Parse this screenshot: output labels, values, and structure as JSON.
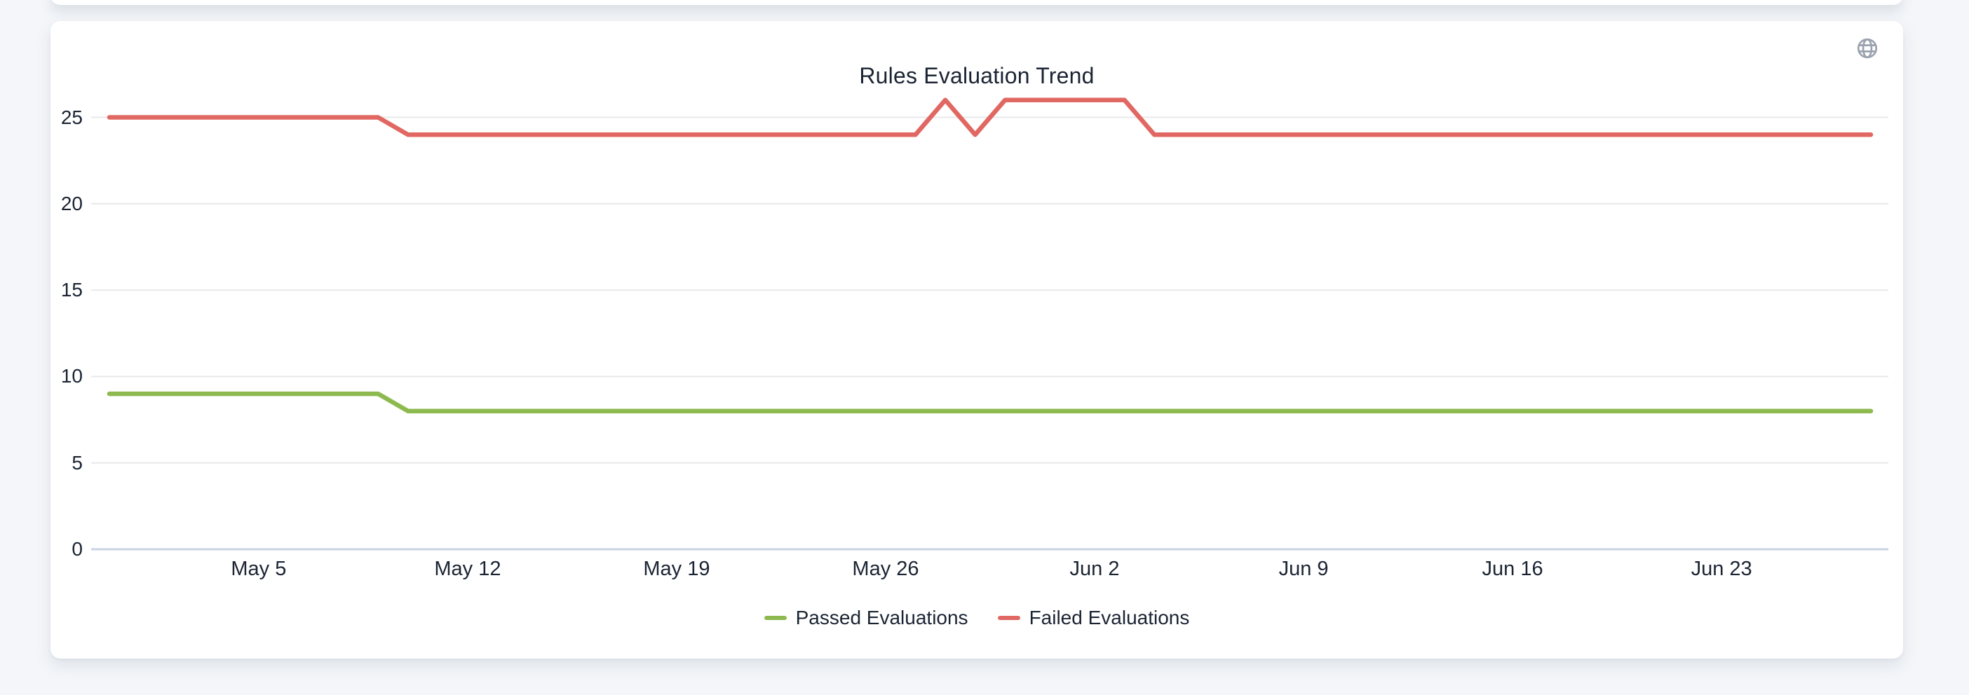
{
  "header": {
    "title": "Rules Evaluation Trend"
  },
  "icons": {
    "top_right": "globe-icon"
  },
  "colors": {
    "page_background": "#f4f6f9",
    "card_background": "#ffffff",
    "text": "#1b2433",
    "grid_line": "#e8e9eb",
    "axis_line": "#c9d3e4",
    "icon_gray": "#9aa2ad",
    "passed_green": "#8dba4f",
    "failed_red": "#e16862"
  },
  "chart_data": {
    "type": "line",
    "title": "Rules Evaluation Trend",
    "xlabel": "",
    "ylabel": "",
    "grid": true,
    "legend_position": "bottom",
    "ylim": [
      0,
      26.4
    ],
    "yticks": [
      0,
      5,
      10,
      15,
      20,
      25
    ],
    "x_tick_labels": [
      "May 5",
      "May 12",
      "May 19",
      "May 26",
      "Jun 2",
      "Jun 9",
      "Jun 16",
      "Jun 23"
    ],
    "x_tick_indices": [
      5,
      12,
      19,
      26,
      33,
      40,
      47,
      54
    ],
    "x": [
      "Apr 30",
      "May 1",
      "May 2",
      "May 3",
      "May 4",
      "May 5",
      "May 6",
      "May 7",
      "May 8",
      "May 9",
      "May 10",
      "May 11",
      "May 12",
      "May 13",
      "May 14",
      "May 15",
      "May 16",
      "May 17",
      "May 18",
      "May 19",
      "May 20",
      "May 21",
      "May 22",
      "May 23",
      "May 24",
      "May 25",
      "May 26",
      "May 27",
      "May 28",
      "May 29",
      "May 30",
      "May 31",
      "Jun 1",
      "Jun 2",
      "Jun 3",
      "Jun 4",
      "Jun 5",
      "Jun 6",
      "Jun 7",
      "Jun 8",
      "Jun 9",
      "Jun 10",
      "Jun 11",
      "Jun 12",
      "Jun 13",
      "Jun 14",
      "Jun 15",
      "Jun 16",
      "Jun 17",
      "Jun 18",
      "Jun 19",
      "Jun 20",
      "Jun 21",
      "Jun 22",
      "Jun 23",
      "Jun 24",
      "Jun 25",
      "Jun 26",
      "Jun 27",
      "Jun 28"
    ],
    "series": [
      {
        "name": "Passed Evaluations",
        "color": "#8dba4f",
        "values": [
          9,
          9,
          9,
          9,
          9,
          9,
          9,
          9,
          9,
          9,
          8,
          8,
          8,
          8,
          8,
          8,
          8,
          8,
          8,
          8,
          8,
          8,
          8,
          8,
          8,
          8,
          8,
          8,
          8,
          8,
          8,
          8,
          8,
          8,
          8,
          8,
          8,
          8,
          8,
          8,
          8,
          8,
          8,
          8,
          8,
          8,
          8,
          8,
          8,
          8,
          8,
          8,
          8,
          8,
          8,
          8,
          8,
          8,
          8,
          8
        ]
      },
      {
        "name": "Failed Evaluations",
        "color": "#e16862",
        "values": [
          25,
          25,
          25,
          25,
          25,
          25,
          25,
          25,
          25,
          25,
          24,
          24,
          24,
          24,
          24,
          24,
          24,
          24,
          24,
          24,
          24,
          24,
          24,
          24,
          24,
          24,
          24,
          24,
          26,
          24,
          26,
          26,
          26,
          26,
          26,
          24,
          24,
          24,
          24,
          24,
          24,
          24,
          24,
          24,
          24,
          24,
          24,
          24,
          24,
          24,
          24,
          24,
          24,
          24,
          24,
          24,
          24,
          24,
          24,
          24
        ]
      }
    ]
  }
}
